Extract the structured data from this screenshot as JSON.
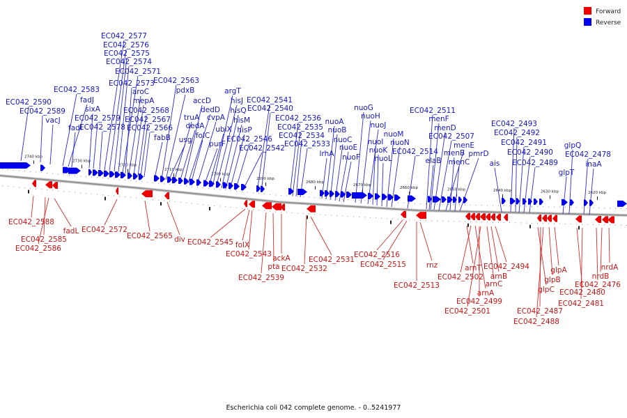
{
  "colors": {
    "forward": "#ee0000",
    "reverse": "#0000ee",
    "forward_text": "#c81515",
    "reverse_text": "#1515c8",
    "backbone": "#8a8a8a"
  },
  "legend": {
    "forward_label": "Forward",
    "reverse_label": "Reverse"
  },
  "footer": {
    "caption": "Escherichia coli 042 complete genome. - 0..5241977"
  },
  "tick_labels": [
    "2740 kbp",
    "2730 kbp",
    "2720 kbp",
    "2710 kbp",
    "2700 kbp",
    "2690 kbp",
    "2680 kbp",
    "2670 kbp",
    "2660 kbp",
    "2650 kbp",
    "2640 kbp",
    "2630 kbp",
    "2620 kbp"
  ],
  "reverse_labels": [
    "EC042_2590",
    "EC042_2589",
    "vacJ",
    "EC042_2583",
    "fadJ",
    "fadI",
    "sixA",
    "EC042_2579",
    "EC042_2578",
    "EC042_2577",
    "EC042_2576",
    "EC042_2575",
    "EC042_2574",
    "EC042_2571",
    "EC042_2573",
    "aroC",
    "mepA",
    "EC042_2568",
    "EC042_2567",
    "EC042_2566",
    "fabB",
    "EC042_2563",
    "pdxB",
    "usg",
    "truA",
    "dedA",
    "accD",
    "dedD",
    "folC",
    "cvpA",
    "purF",
    "ubiX",
    "argT",
    "hisJ",
    "hisQ",
    "hisM",
    "hisP",
    "EC042_2546",
    "EC042_2542",
    "EC042_2541",
    "EC042_2540",
    "EC042_2536",
    "EC042_2535",
    "EC042_2534",
    "EC042_2533",
    "lrhA",
    "nuoA",
    "nuoB",
    "nuoC",
    "nuoE",
    "nuoF",
    "nuoG",
    "nuoH",
    "nuoJ",
    "nuoI",
    "nuoK",
    "nuoL",
    "nuoM",
    "nuoN",
    "EC042_2514",
    "EC042_2511",
    "menF",
    "menD",
    "elaB",
    "EC042_2507",
    "menE",
    "menB",
    "menC",
    "pmrD",
    "ais",
    "EC042_2493",
    "EC042_2492",
    "EC042_2491",
    "EC042_2490",
    "EC042_2489",
    "glpT",
    "glpQ",
    "EC042_2478",
    "inaA"
  ],
  "forward_labels": [
    "EC042_2588",
    "EC042_2585",
    "EC042_2586",
    "fadL",
    "EC042_2572",
    "EC042_2565",
    "div",
    "EC042_2545",
    "folX",
    "EC042_2543",
    "EC042_2539",
    "pta",
    "ackA",
    "EC042_2532",
    "EC042_2531",
    "EC042_2516",
    "EC042_2515",
    "EC042_2513",
    "rnz",
    "arnT",
    "EC042_2502",
    "arnA",
    "EC042_2499",
    "EC042_2501",
    "arnC",
    "arnB",
    "EC042_2494",
    "glpC",
    "EC042_2487",
    "EC042_2488",
    "glpB",
    "glpA",
    "EC042_2480",
    "EC042_2481",
    "EC042_2476",
    "nrdB",
    "nrdA"
  ]
}
